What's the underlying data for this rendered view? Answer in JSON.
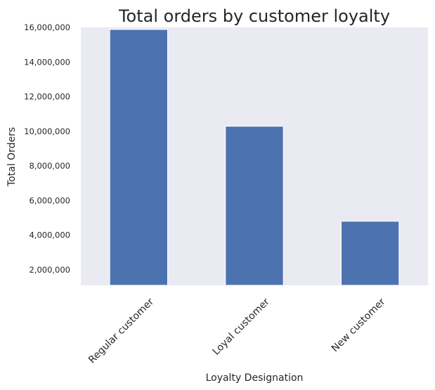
{
  "chart_data": {
    "type": "bar",
    "title": "Total orders by customer loyalty",
    "xlabel": "Loyalty Designation",
    "ylabel": "Total Orders",
    "categories": [
      "Regular customer",
      "Loyal customer",
      "New customer"
    ],
    "values": [
      15880000,
      10290000,
      4800000
    ],
    "ylim": [
      1100000,
      16000000
    ],
    "yticks": [
      2000000,
      4000000,
      6000000,
      8000000,
      10000000,
      12000000,
      14000000,
      16000000
    ],
    "ytick_labels": [
      "2,000,000",
      "4,000,000",
      "6,000,000",
      "8,000,000",
      "10,000,000",
      "12,000,000",
      "14,000,000",
      "16,000,000"
    ],
    "grid": false,
    "colors": {
      "bar": "#4c72b0",
      "plot_background": "#eaeaf2"
    }
  }
}
